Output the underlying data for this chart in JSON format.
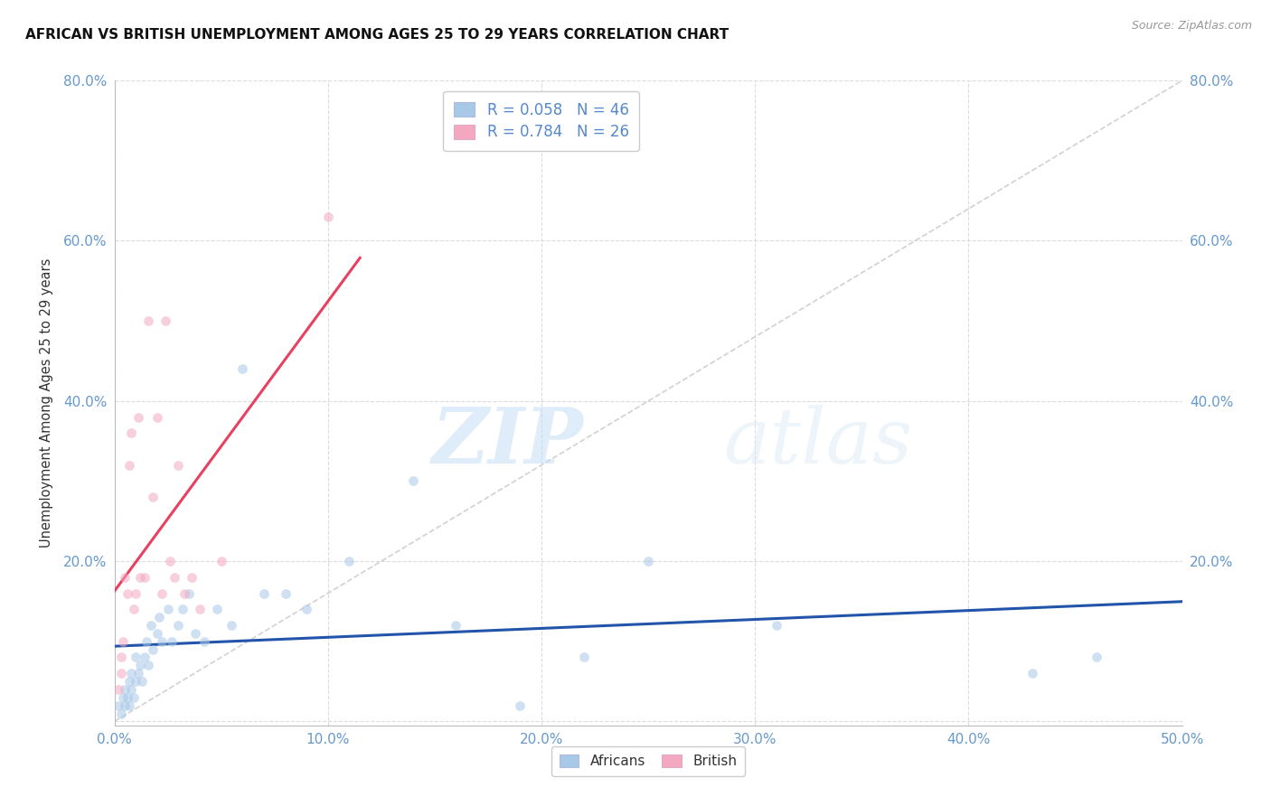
{
  "title": "AFRICAN VS BRITISH UNEMPLOYMENT AMONG AGES 25 TO 29 YEARS CORRELATION CHART",
  "source": "Source: ZipAtlas.com",
  "ylabel": "Unemployment Among Ages 25 to 29 years",
  "xlim": [
    0.0,
    0.5
  ],
  "ylim": [
    -0.005,
    0.8
  ],
  "xticks": [
    0.0,
    0.1,
    0.2,
    0.3,
    0.4,
    0.5
  ],
  "yticks": [
    0.0,
    0.2,
    0.4,
    0.6,
    0.8
  ],
  "xtick_labels": [
    "0.0%",
    "10.0%",
    "20.0%",
    "30.0%",
    "40.0%",
    "50.0%"
  ],
  "ytick_labels": [
    "",
    "20.0%",
    "40.0%",
    "60.0%",
    "80.0%"
  ],
  "africans_x": [
    0.002,
    0.003,
    0.004,
    0.005,
    0.005,
    0.006,
    0.007,
    0.007,
    0.008,
    0.008,
    0.009,
    0.01,
    0.01,
    0.011,
    0.012,
    0.013,
    0.014,
    0.015,
    0.016,
    0.017,
    0.018,
    0.02,
    0.021,
    0.022,
    0.025,
    0.027,
    0.03,
    0.032,
    0.035,
    0.038,
    0.042,
    0.048,
    0.055,
    0.06,
    0.07,
    0.08,
    0.09,
    0.11,
    0.14,
    0.16,
    0.19,
    0.22,
    0.25,
    0.31,
    0.43,
    0.46
  ],
  "africans_y": [
    0.02,
    0.01,
    0.03,
    0.02,
    0.04,
    0.03,
    0.05,
    0.02,
    0.04,
    0.06,
    0.03,
    0.05,
    0.08,
    0.06,
    0.07,
    0.05,
    0.08,
    0.1,
    0.07,
    0.12,
    0.09,
    0.11,
    0.13,
    0.1,
    0.14,
    0.1,
    0.12,
    0.14,
    0.16,
    0.11,
    0.1,
    0.14,
    0.12,
    0.44,
    0.16,
    0.16,
    0.14,
    0.2,
    0.3,
    0.12,
    0.02,
    0.08,
    0.2,
    0.12,
    0.06,
    0.08
  ],
  "british_x": [
    0.002,
    0.003,
    0.003,
    0.004,
    0.005,
    0.006,
    0.007,
    0.008,
    0.009,
    0.01,
    0.011,
    0.012,
    0.014,
    0.016,
    0.018,
    0.02,
    0.022,
    0.024,
    0.026,
    0.028,
    0.03,
    0.033,
    0.036,
    0.04,
    0.05,
    0.1
  ],
  "british_y": [
    0.04,
    0.06,
    0.08,
    0.1,
    0.18,
    0.16,
    0.32,
    0.36,
    0.14,
    0.16,
    0.38,
    0.18,
    0.18,
    0.5,
    0.28,
    0.38,
    0.16,
    0.5,
    0.2,
    0.18,
    0.32,
    0.16,
    0.18,
    0.14,
    0.2,
    0.63
  ],
  "africans_R": 0.058,
  "africans_N": 46,
  "british_R": 0.784,
  "british_N": 26,
  "africans_color": "#a8c8e8",
  "british_color": "#f4a8c0",
  "africans_line_color": "#2255aa",
  "british_line_color": "#e84060",
  "diagonal_color": "#cccccc",
  "background_color": "#ffffff",
  "watermark_zip": "ZIP",
  "watermark_atlas": "atlas",
  "marker_size": 60,
  "marker_alpha": 0.55
}
